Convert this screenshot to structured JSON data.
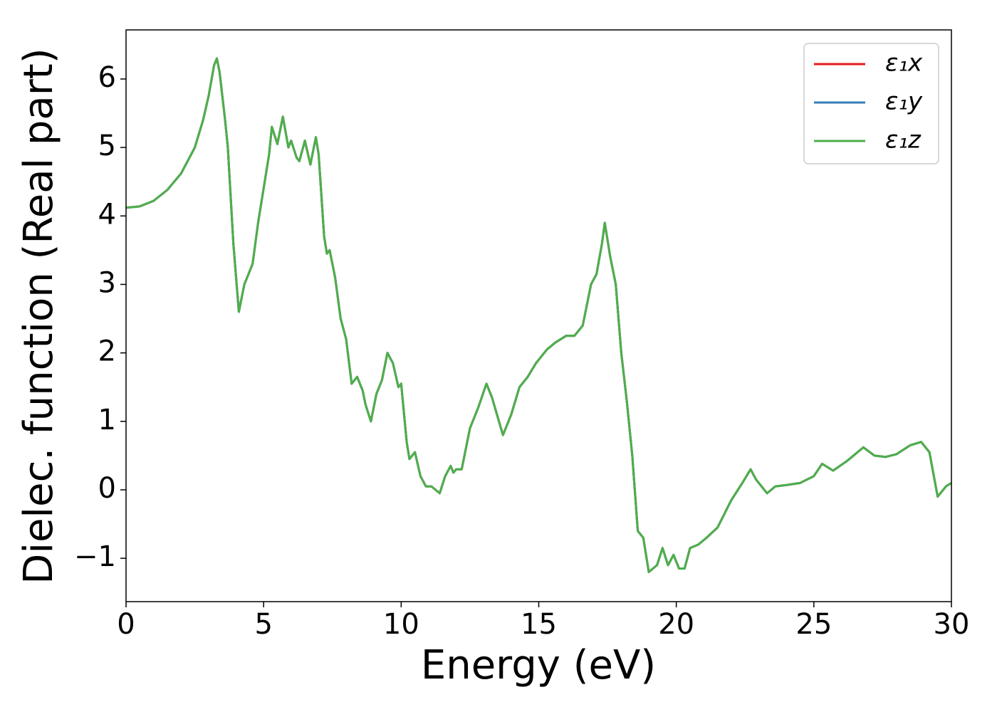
{
  "chart_data": {
    "type": "line",
    "xlabel": "Energy (eV)",
    "ylabel": "Dielec. function (Real part)",
    "x": [
      0,
      0.5,
      1,
      1.5,
      2,
      2.5,
      2.8,
      3.0,
      3.2,
      3.3,
      3.4,
      3.6,
      3.7,
      3.9,
      4.1,
      4.3,
      4.5,
      4.6,
      4.8,
      5.0,
      5.2,
      5.3,
      5.5,
      5.7,
      5.9,
      6.0,
      6.2,
      6.3,
      6.5,
      6.7,
      6.9,
      7.0,
      7.2,
      7.3,
      7.4,
      7.6,
      7.8,
      8.0,
      8.2,
      8.4,
      8.6,
      8.7,
      8.9,
      9.1,
      9.3,
      9.5,
      9.7,
      9.9,
      10.0,
      10.2,
      10.3,
      10.5,
      10.7,
      10.9,
      11.1,
      11.4,
      11.6,
      11.8,
      11.9,
      12.0,
      12.2,
      12.5,
      12.8,
      13.1,
      13.3,
      13.7,
      14.0,
      14.3,
      14.6,
      14.9,
      15.3,
      15.6,
      16.0,
      16.3,
      16.6,
      16.9,
      17.1,
      17.3,
      17.4,
      17.6,
      17.8,
      18.0,
      18.2,
      18.4,
      18.6,
      18.8,
      19.0,
      19.3,
      19.5,
      19.7,
      19.9,
      20.1,
      20.3,
      20.5,
      20.8,
      21.1,
      21.5,
      22.0,
      22.4,
      22.7,
      22.9,
      23.3,
      23.6,
      24.0,
      24.5,
      25.0,
      25.3,
      25.7,
      26.2,
      26.8,
      27.2,
      27.6,
      28.0,
      28.5,
      28.9,
      29.2,
      29.5,
      29.8,
      30.0
    ],
    "series": [
      {
        "name": "ε₁x",
        "color": "#e41a1c",
        "values": [
          4.12,
          4.14,
          4.22,
          4.38,
          4.62,
          5.0,
          5.4,
          5.75,
          6.2,
          6.3,
          6.1,
          5.4,
          5.0,
          3.6,
          2.6,
          3.0,
          3.2,
          3.3,
          3.9,
          4.4,
          4.9,
          5.3,
          5.05,
          5.45,
          5.0,
          5.1,
          4.85,
          4.8,
          5.1,
          4.75,
          5.15,
          4.9,
          3.7,
          3.45,
          3.5,
          3.1,
          2.5,
          2.2,
          1.55,
          1.65,
          1.45,
          1.25,
          1.0,
          1.4,
          1.6,
          2.0,
          1.85,
          1.5,
          1.55,
          0.7,
          0.45,
          0.55,
          0.2,
          0.05,
          0.05,
          -0.05,
          0.2,
          0.35,
          0.25,
          0.3,
          0.3,
          0.9,
          1.2,
          1.55,
          1.35,
          0.8,
          1.1,
          1.5,
          1.65,
          1.85,
          2.05,
          2.15,
          2.25,
          2.25,
          2.4,
          3.0,
          3.15,
          3.6,
          3.9,
          3.4,
          3.0,
          2.0,
          1.3,
          0.5,
          -0.6,
          -0.7,
          -1.2,
          -1.1,
          -0.85,
          -1.1,
          -0.95,
          -1.15,
          -1.15,
          -0.85,
          -0.8,
          -0.7,
          -0.55,
          -0.15,
          0.1,
          0.3,
          0.15,
          -0.05,
          0.05,
          0.07,
          0.1,
          0.2,
          0.38,
          0.28,
          0.42,
          0.62,
          0.5,
          0.48,
          0.52,
          0.65,
          0.7,
          0.55,
          -0.1,
          0.05,
          0.1
        ]
      },
      {
        "name": "ε₁y",
        "color": "#377eb8",
        "values": [
          4.12,
          4.14,
          4.22,
          4.38,
          4.62,
          5.0,
          5.4,
          5.75,
          6.2,
          6.3,
          6.1,
          5.4,
          5.0,
          3.6,
          2.6,
          3.0,
          3.2,
          3.3,
          3.9,
          4.4,
          4.9,
          5.3,
          5.05,
          5.45,
          5.0,
          5.1,
          4.85,
          4.8,
          5.1,
          4.75,
          5.15,
          4.9,
          3.7,
          3.45,
          3.5,
          3.1,
          2.5,
          2.2,
          1.55,
          1.65,
          1.45,
          1.25,
          1.0,
          1.4,
          1.6,
          2.0,
          1.85,
          1.5,
          1.55,
          0.7,
          0.45,
          0.55,
          0.2,
          0.05,
          0.05,
          -0.05,
          0.2,
          0.35,
          0.25,
          0.3,
          0.3,
          0.9,
          1.2,
          1.55,
          1.35,
          0.8,
          1.1,
          1.5,
          1.65,
          1.85,
          2.05,
          2.15,
          2.25,
          2.25,
          2.4,
          3.0,
          3.15,
          3.6,
          3.9,
          3.4,
          3.0,
          2.0,
          1.3,
          0.5,
          -0.6,
          -0.7,
          -1.2,
          -1.1,
          -0.85,
          -1.1,
          -0.95,
          -1.15,
          -1.15,
          -0.85,
          -0.8,
          -0.7,
          -0.55,
          -0.15,
          0.1,
          0.3,
          0.15,
          -0.05,
          0.05,
          0.07,
          0.1,
          0.2,
          0.38,
          0.28,
          0.42,
          0.62,
          0.5,
          0.48,
          0.52,
          0.65,
          0.7,
          0.55,
          -0.1,
          0.05,
          0.1
        ]
      },
      {
        "name": "ε₁z",
        "color": "#4daf4a",
        "values": [
          4.12,
          4.14,
          4.22,
          4.38,
          4.62,
          5.0,
          5.4,
          5.75,
          6.2,
          6.3,
          6.1,
          5.4,
          5.0,
          3.6,
          2.6,
          3.0,
          3.2,
          3.3,
          3.9,
          4.4,
          4.9,
          5.3,
          5.05,
          5.45,
          5.0,
          5.1,
          4.85,
          4.8,
          5.1,
          4.75,
          5.15,
          4.9,
          3.7,
          3.45,
          3.5,
          3.1,
          2.5,
          2.2,
          1.55,
          1.65,
          1.45,
          1.25,
          1.0,
          1.4,
          1.6,
          2.0,
          1.85,
          1.5,
          1.55,
          0.7,
          0.45,
          0.55,
          0.2,
          0.05,
          0.05,
          -0.05,
          0.2,
          0.35,
          0.25,
          0.3,
          0.3,
          0.9,
          1.2,
          1.55,
          1.35,
          0.8,
          1.1,
          1.5,
          1.65,
          1.85,
          2.05,
          2.15,
          2.25,
          2.25,
          2.4,
          3.0,
          3.15,
          3.6,
          3.9,
          3.4,
          3.0,
          2.0,
          1.3,
          0.5,
          -0.6,
          -0.7,
          -1.2,
          -1.1,
          -0.85,
          -1.1,
          -0.95,
          -1.15,
          -1.15,
          -0.85,
          -0.8,
          -0.7,
          -0.55,
          -0.15,
          0.1,
          0.3,
          0.15,
          -0.05,
          0.05,
          0.07,
          0.1,
          0.2,
          0.38,
          0.28,
          0.42,
          0.62,
          0.5,
          0.48,
          0.52,
          0.65,
          0.7,
          0.55,
          -0.1,
          0.05,
          0.1
        ]
      }
    ],
    "xlim": [
      0,
      30
    ],
    "xticks": [
      0,
      5,
      10,
      15,
      20,
      25,
      30
    ],
    "ylim": [
      -1.633,
      6.717
    ],
    "yticks": [
      {
        "value": -1,
        "label": "−1"
      },
      0,
      1,
      2,
      3,
      4,
      5,
      6
    ],
    "grid": false,
    "legend": "upper right"
  }
}
